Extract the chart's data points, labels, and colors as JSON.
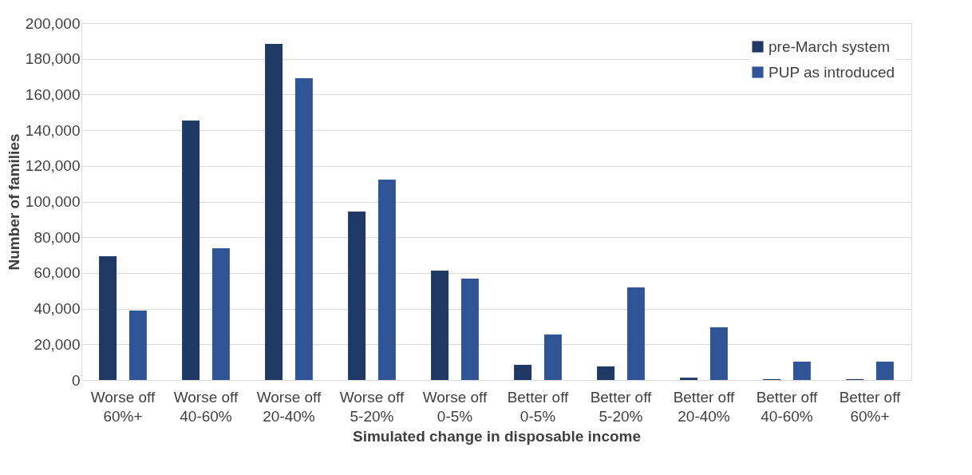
{
  "chart_data": {
    "type": "bar",
    "xlabel": "Simulated change in disposable income",
    "ylabel": "Number of families",
    "categories": [
      "Worse off 60%+",
      "Worse off 40-60%",
      "Worse off 20-40%",
      "Worse off 5-20%",
      "Worse off 0-5%",
      "Better off 0-5%",
      "Better off 5-20%",
      "Better off 20-40%",
      "Better off 40-60%",
      "Better off 60%+"
    ],
    "series": [
      {
        "name": "pre-March system",
        "color": "#203864",
        "values": [
          69400,
          145400,
          188400,
          94400,
          61300,
          8500,
          7600,
          1300,
          500,
          500
        ]
      },
      {
        "name": "PUP as introduced",
        "color": "#2f5597",
        "values": [
          38900,
          73800,
          169100,
          112300,
          56800,
          25500,
          51900,
          29500,
          10300,
          10300
        ]
      }
    ],
    "ylim": [
      0,
      200000
    ],
    "yticks": [
      {
        "value": 0,
        "label": "0"
      },
      {
        "value": 20000,
        "label": "20,000"
      },
      {
        "value": 40000,
        "label": "40,000"
      },
      {
        "value": 60000,
        "label": "60,000"
      },
      {
        "value": 80000,
        "label": "80,000"
      },
      {
        "value": 100000,
        "label": "100,000"
      },
      {
        "value": 120000,
        "label": "120,000"
      },
      {
        "value": 140000,
        "label": "140,000"
      },
      {
        "value": 160000,
        "label": "160,000"
      },
      {
        "value": 180000,
        "label": "180,000"
      },
      {
        "value": 200000,
        "label": "200,000"
      }
    ],
    "grid": "y",
    "legend": "top right"
  }
}
